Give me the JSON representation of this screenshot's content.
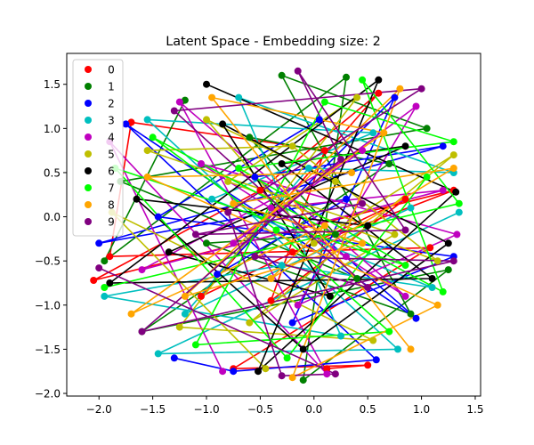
{
  "chart_data": {
    "type": "scatter",
    "title": "Latent Space - Embedding size: 2",
    "xlabel": "",
    "ylabel": "",
    "xlim": [
      -2.3,
      1.55
    ],
    "ylim": [
      -2.03,
      1.85
    ],
    "xticks": [
      -2.0,
      -1.5,
      -1.0,
      -0.5,
      0.0,
      0.5,
      1.0,
      1.5
    ],
    "xtick_labels": [
      "−2.0",
      "−1.5",
      "−1.0",
      "−0.5",
      "0.0",
      "0.5",
      "1.0",
      "1.5"
    ],
    "yticks": [
      -2.0,
      -1.5,
      -1.0,
      -0.5,
      0.0,
      0.5,
      1.0,
      1.5
    ],
    "ytick_labels": [
      "−2.0",
      "−1.5",
      "−1.0",
      "−0.5",
      "0.0",
      "0.5",
      "1.0",
      "1.5"
    ],
    "grid": false,
    "legend_position": "upper-left",
    "series": [
      {
        "name": "0",
        "color": "#ff0000",
        "points": [
          [
            0.12,
            -1.72
          ],
          [
            0.5,
            -1.68
          ],
          [
            -0.75,
            -1.72
          ],
          [
            1.08,
            -0.35
          ],
          [
            -1.9,
            -0.45
          ],
          [
            -1.7,
            1.07
          ],
          [
            0.1,
            0.75
          ],
          [
            -0.4,
            -0.95
          ],
          [
            0.85,
            0.2
          ],
          [
            -1.05,
            -0.9
          ],
          [
            0.6,
            1.4
          ],
          [
            -0.5,
            0.3
          ],
          [
            -2.05,
            -0.72
          ],
          [
            1.3,
            0.3
          ],
          [
            -0.2,
            -0.4
          ]
        ]
      },
      {
        "name": "1",
        "color": "#008000",
        "points": [
          [
            -1.2,
            1.32
          ],
          [
            -1.95,
            -0.5
          ],
          [
            0.3,
            1.58
          ],
          [
            -0.1,
            -1.85
          ],
          [
            1.25,
            -0.6
          ],
          [
            -1.6,
            -1.3
          ],
          [
            0.7,
            0.6
          ],
          [
            -0.6,
            0.9
          ],
          [
            0.2,
            -0.2
          ],
          [
            -1.0,
            -0.3
          ],
          [
            0.9,
            -1.1
          ],
          [
            -0.3,
            1.6
          ],
          [
            1.05,
            1.0
          ],
          [
            -1.8,
            0.4
          ],
          [
            0.4,
            -0.7
          ]
        ]
      },
      {
        "name": "2",
        "color": "#0000ff",
        "points": [
          [
            -1.3,
            -1.6
          ],
          [
            -0.75,
            -1.75
          ],
          [
            0.58,
            -1.62
          ],
          [
            -1.75,
            1.05
          ],
          [
            0.95,
            -1.15
          ],
          [
            -0.55,
            0.45
          ],
          [
            1.2,
            0.8
          ],
          [
            -2.0,
            -0.3
          ],
          [
            0.3,
            0.2
          ],
          [
            -0.9,
            -0.65
          ],
          [
            0.75,
            1.35
          ],
          [
            -0.2,
            -1.2
          ],
          [
            1.3,
            -0.45
          ],
          [
            -1.45,
            0.0
          ],
          [
            0.05,
            1.1
          ]
        ]
      },
      {
        "name": "3",
        "color": "#00bfbf",
        "points": [
          [
            1.35,
            0.05
          ],
          [
            -1.45,
            -1.55
          ],
          [
            0.78,
            -1.5
          ],
          [
            -1.55,
            1.1
          ],
          [
            0.55,
            0.95
          ],
          [
            -0.95,
            0.2
          ],
          [
            1.1,
            -0.8
          ],
          [
            -0.3,
            -0.55
          ],
          [
            -1.95,
            -0.9
          ],
          [
            0.25,
            -1.35
          ],
          [
            -0.7,
            1.35
          ],
          [
            1.3,
            0.5
          ],
          [
            -0.05,
            0.55
          ],
          [
            -1.2,
            -1.1
          ],
          [
            0.9,
            0.1
          ]
        ]
      },
      {
        "name": "4",
        "color": "#bf00bf",
        "points": [
          [
            -0.85,
            -1.75
          ],
          [
            -1.9,
            0.85
          ],
          [
            0.12,
            -1.78
          ],
          [
            -1.25,
            1.3
          ],
          [
            0.85,
            -0.9
          ],
          [
            -0.4,
            0.1
          ],
          [
            1.2,
            0.3
          ],
          [
            -1.6,
            -0.6
          ],
          [
            0.45,
            0.75
          ],
          [
            -0.75,
            -0.3
          ],
          [
            0.95,
            1.25
          ],
          [
            -0.15,
            -1.0
          ],
          [
            1.33,
            -0.2
          ],
          [
            -1.05,
            0.6
          ],
          [
            0.3,
            -0.45
          ]
        ]
      },
      {
        "name": "5",
        "color": "#bfbf00",
        "points": [
          [
            -0.45,
            -1.72
          ],
          [
            -1.88,
            0.05
          ],
          [
            0.55,
            -1.4
          ],
          [
            -1.25,
            -1.25
          ],
          [
            0.4,
            1.35
          ],
          [
            -0.8,
            0.4
          ],
          [
            1.15,
            -0.5
          ],
          [
            -0.2,
            0.8
          ],
          [
            -1.55,
            0.75
          ],
          [
            0.75,
            -0.2
          ],
          [
            -0.6,
            -1.2
          ],
          [
            1.3,
            0.7
          ],
          [
            0.0,
            -0.3
          ],
          [
            -1.0,
            1.1
          ],
          [
            0.2,
            0.4
          ]
        ]
      },
      {
        "name": "6",
        "color": "#000000",
        "points": [
          [
            -1.0,
            1.5
          ],
          [
            1.32,
            0.28
          ],
          [
            -0.52,
            -1.75
          ],
          [
            0.6,
            1.55
          ],
          [
            -1.9,
            -0.75
          ],
          [
            1.1,
            -0.7
          ],
          [
            -0.3,
            0.6
          ],
          [
            0.85,
            0.8
          ],
          [
            -1.35,
            -0.4
          ],
          [
            0.15,
            -0.9
          ],
          [
            -0.85,
            1.05
          ],
          [
            1.25,
            -0.3
          ],
          [
            -0.1,
            -1.5
          ],
          [
            -1.65,
            0.2
          ],
          [
            0.5,
            -0.1
          ]
        ]
      },
      {
        "name": "7",
        "color": "#00ff00",
        "points": [
          [
            -1.95,
            -0.8
          ],
          [
            1.35,
            0.15
          ],
          [
            0.45,
            1.55
          ],
          [
            1.2,
            -0.85
          ],
          [
            -1.5,
            0.9
          ],
          [
            -0.35,
            -0.15
          ],
          [
            0.7,
            -1.3
          ],
          [
            -1.1,
            -1.45
          ],
          [
            0.1,
            1.3
          ],
          [
            1.3,
            0.85
          ],
          [
            -0.7,
            0.55
          ],
          [
            0.85,
            -0.55
          ],
          [
            -1.85,
            0.55
          ],
          [
            -0.25,
            -1.6
          ],
          [
            1.05,
            0.45
          ]
        ]
      },
      {
        "name": "8",
        "color": "#ffa500",
        "points": [
          [
            0.35,
            0.5
          ],
          [
            -1.55,
            0.45
          ],
          [
            1.15,
            -1.0
          ],
          [
            -0.2,
            -1.82
          ],
          [
            0.8,
            1.45
          ],
          [
            -1.2,
            -0.9
          ],
          [
            0.45,
            -0.3
          ],
          [
            -0.75,
            0.15
          ],
          [
            1.3,
            0.55
          ],
          [
            -0.4,
            -0.7
          ],
          [
            0.1,
            -0.1
          ],
          [
            -1.7,
            -1.1
          ],
          [
            0.65,
            0.95
          ],
          [
            -0.95,
            1.35
          ],
          [
            0.9,
            -1.5
          ]
        ]
      },
      {
        "name": "9",
        "color": "#800080",
        "points": [
          [
            -2.0,
            -0.58
          ],
          [
            0.2,
            -1.78
          ],
          [
            -0.3,
            -1.8
          ],
          [
            -0.8,
            0.05
          ],
          [
            1.0,
            1.45
          ],
          [
            -1.3,
            1.2
          ],
          [
            0.5,
            -0.8
          ],
          [
            -0.55,
            -0.45
          ],
          [
            1.3,
            -0.5
          ],
          [
            -1.6,
            -1.3
          ],
          [
            0.25,
            0.65
          ],
          [
            -0.15,
            1.65
          ],
          [
            0.85,
            -0.15
          ],
          [
            -1.1,
            -0.2
          ],
          [
            0.45,
            0.15
          ]
        ]
      }
    ]
  }
}
